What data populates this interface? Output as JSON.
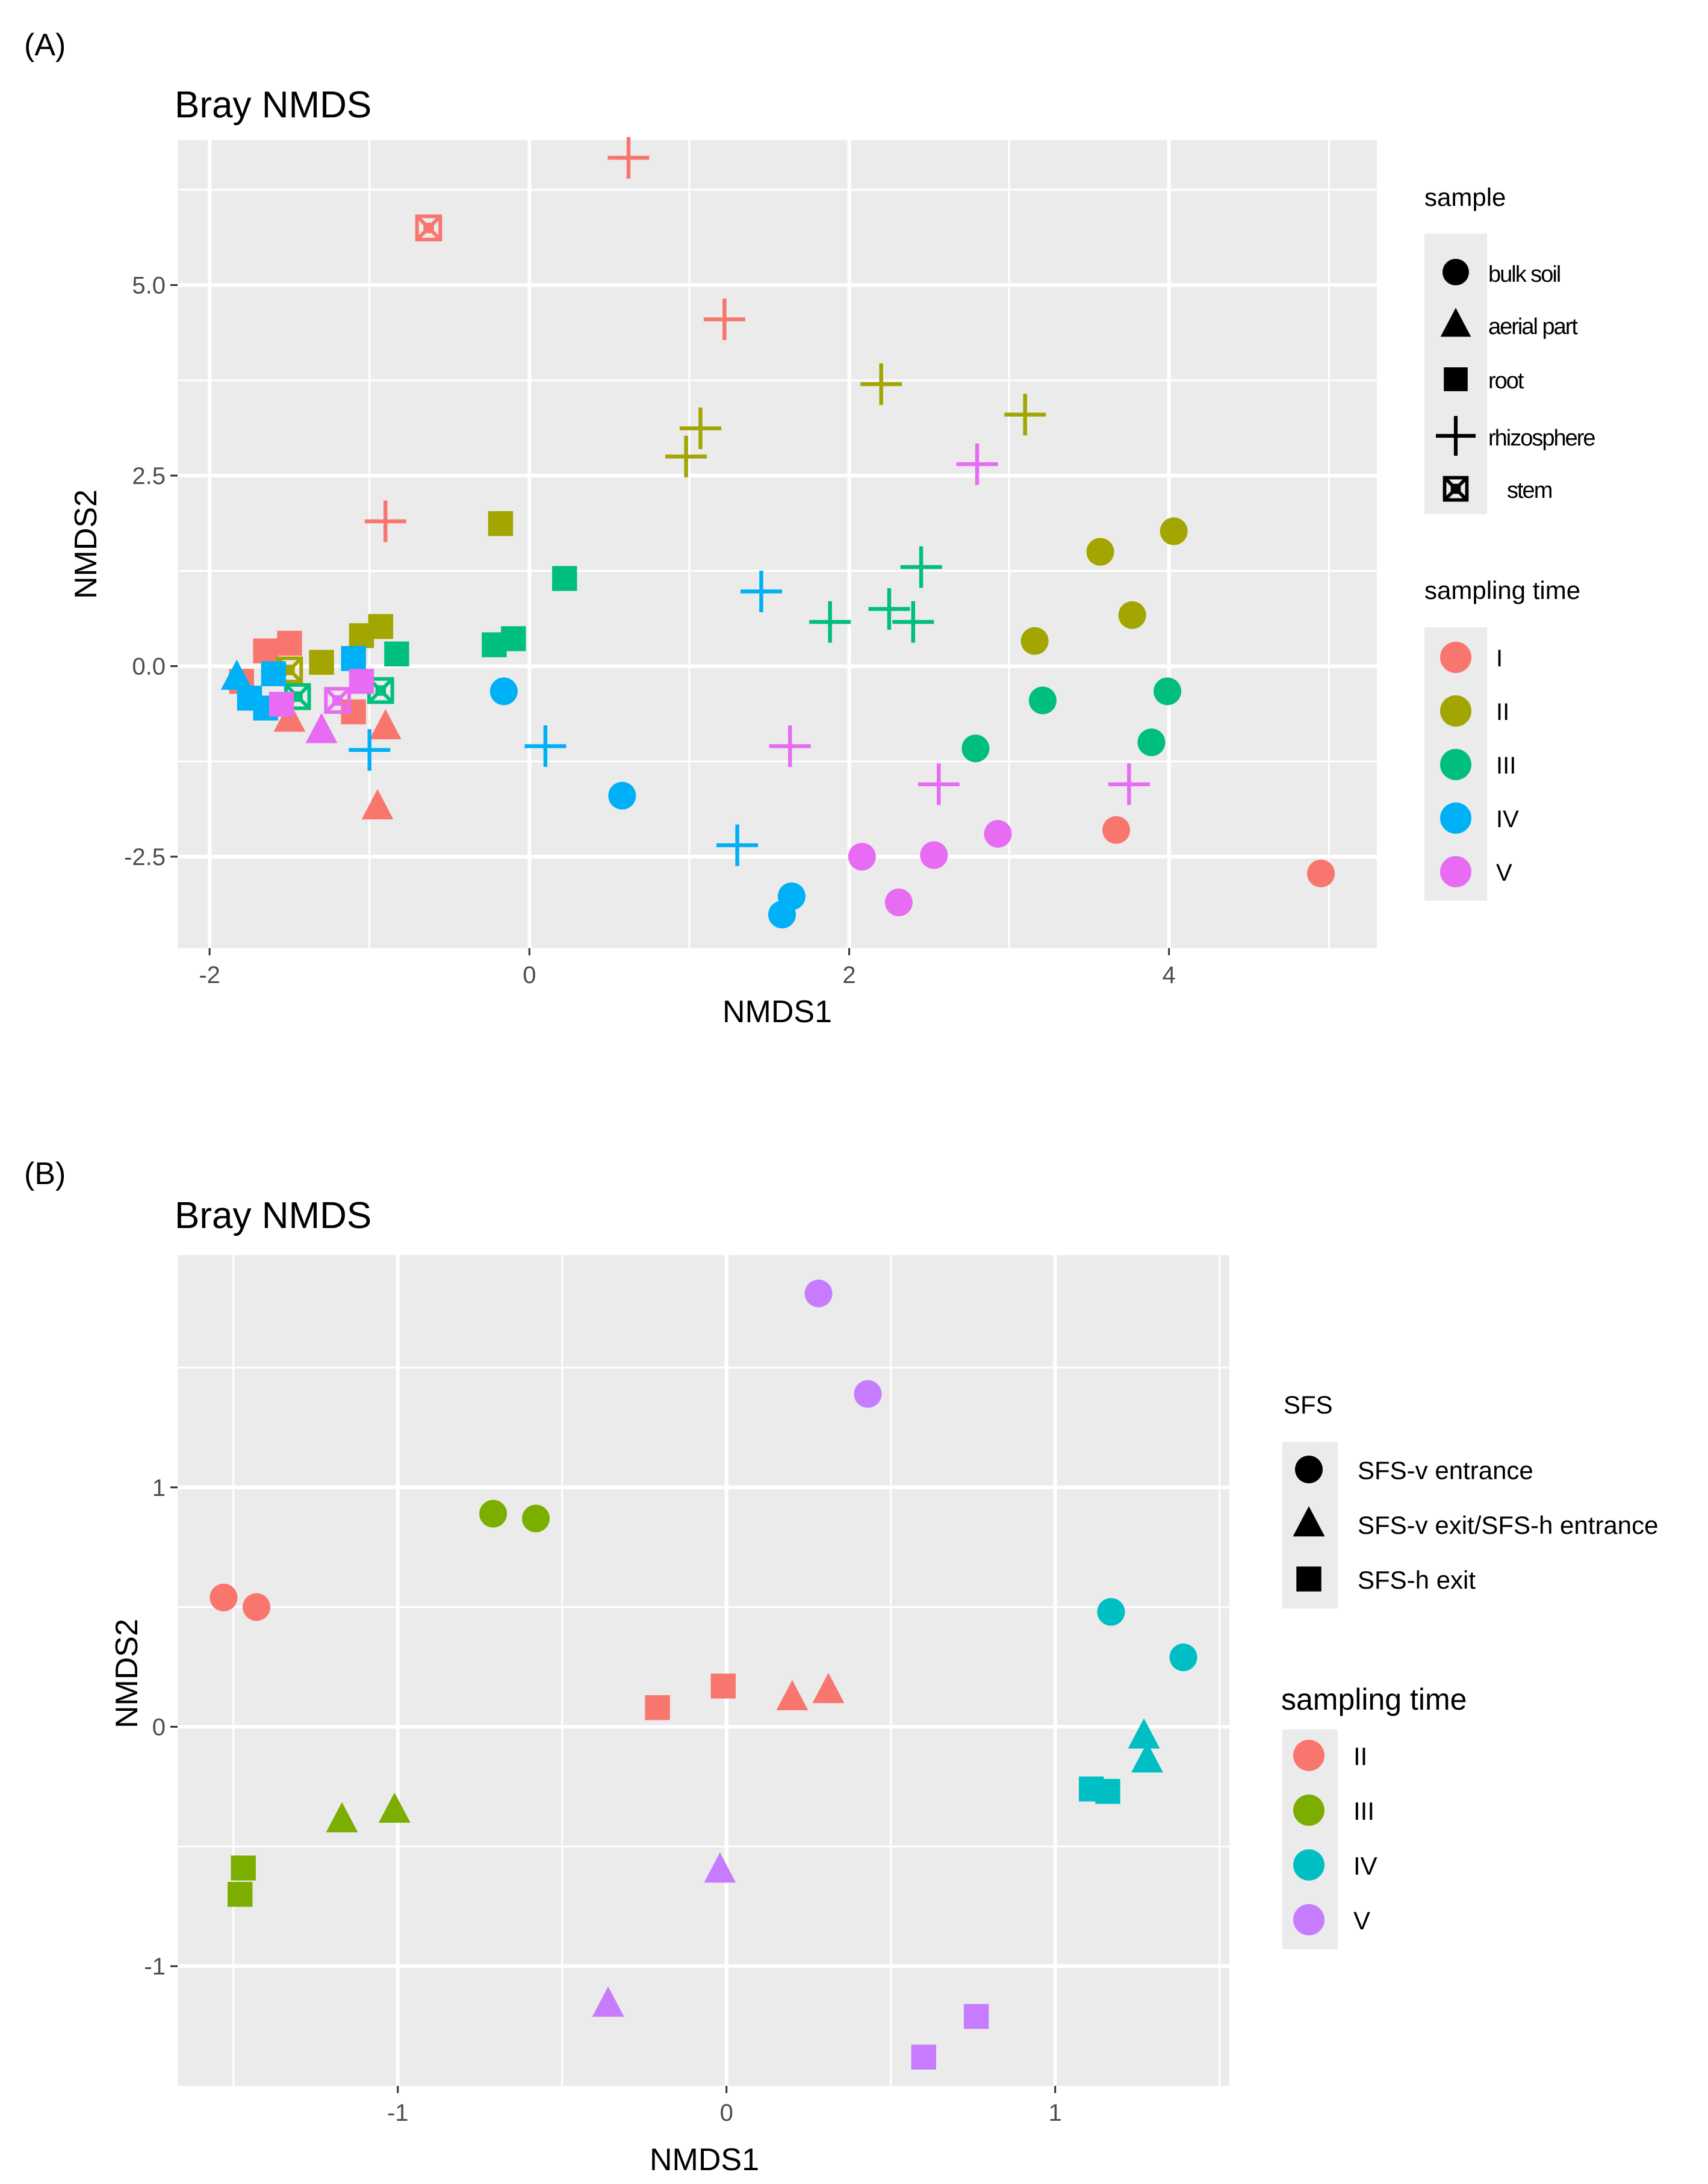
{
  "panels": [
    {
      "panel_label": "(A)",
      "legends": {
        "shape": {
          "title": "sample",
          "entries": [
            {
              "label": "bulk soil",
              "shape": "circle"
            },
            {
              "label": "aerial part",
              "shape": "triangle"
            },
            {
              "label": "root",
              "shape": "square"
            },
            {
              "label": "rhizosphere",
              "shape": "plus"
            },
            {
              "label": "stem",
              "shape": "square-x"
            }
          ]
        },
        "color": {
          "title": "sampling time",
          "entries": [
            {
              "label": "I",
              "color": "#F8766D"
            },
            {
              "label": "II",
              "color": "#A3A500"
            },
            {
              "label": "III",
              "color": "#00BF7D"
            },
            {
              "label": "IV",
              "color": "#00B0F6"
            },
            {
              "label": "V",
              "color": "#E76BF3"
            }
          ]
        }
      }
    },
    {
      "panel_label": "(B)",
      "legends": {
        "shape": {
          "title": "SFS",
          "entries": [
            {
              "label": "SFS-v entrance",
              "shape": "circle"
            },
            {
              "label": "SFS-v exit/SFS-h entrance",
              "shape": "triangle"
            },
            {
              "label": "SFS-h exit",
              "shape": "square"
            }
          ]
        },
        "color": {
          "title": "sampling time",
          "entries": [
            {
              "label": "II",
              "color": "#F8766D"
            },
            {
              "label": "III",
              "color": "#7CAE00"
            },
            {
              "label": "IV",
              "color": "#00BFC4"
            },
            {
              "label": "V",
              "color": "#C77CFF"
            }
          ]
        }
      }
    }
  ],
  "chart_data": [
    {
      "type": "scatter",
      "title": "Bray NMDS",
      "xlabel": "NMDS1",
      "ylabel": "NMDS2",
      "xlim": [
        -2.2,
        5.3
      ],
      "ylim": [
        -3.7,
        6.9
      ],
      "xticks": [
        -2,
        0,
        2,
        4
      ],
      "xtick_labels": [
        "-2",
        "0",
        "2",
        "4"
      ],
      "yticks": [
        -2.5,
        0.0,
        2.5,
        5.0
      ],
      "ytick_labels": [
        "-2.5",
        "0.0",
        "2.5",
        "5.0"
      ],
      "grid": true,
      "points": [
        {
          "x": 0.62,
          "y": 6.67,
          "shape": "plus",
          "group": "I"
        },
        {
          "x": -0.63,
          "y": 5.75,
          "shape": "square-x",
          "group": "I"
        },
        {
          "x": 1.22,
          "y": 4.55,
          "shape": "plus",
          "group": "I"
        },
        {
          "x": -0.9,
          "y": 1.9,
          "shape": "plus",
          "group": "I"
        },
        {
          "x": 3.67,
          "y": -2.15,
          "shape": "circle",
          "group": "I"
        },
        {
          "x": 4.95,
          "y": -2.72,
          "shape": "circle",
          "group": "I"
        },
        {
          "x": -0.95,
          "y": -1.85,
          "shape": "triangle",
          "group": "I"
        },
        {
          "x": -1.5,
          "y": 0.3,
          "shape": "square",
          "group": "I"
        },
        {
          "x": -1.65,
          "y": 0.2,
          "shape": "square",
          "group": "I"
        },
        {
          "x": -1.8,
          "y": -0.2,
          "shape": "square",
          "group": "I"
        },
        {
          "x": -1.5,
          "y": -0.7,
          "shape": "triangle",
          "group": "I"
        },
        {
          "x": -0.9,
          "y": -0.8,
          "shape": "triangle",
          "group": "I"
        },
        {
          "x": -1.1,
          "y": -0.6,
          "shape": "square",
          "group": "I"
        },
        {
          "x": 2.2,
          "y": 3.7,
          "shape": "plus",
          "group": "II"
        },
        {
          "x": 3.1,
          "y": 3.3,
          "shape": "plus",
          "group": "II"
        },
        {
          "x": 1.07,
          "y": 3.12,
          "shape": "plus",
          "group": "II"
        },
        {
          "x": 0.98,
          "y": 2.75,
          "shape": "plus",
          "group": "II"
        },
        {
          "x": -0.18,
          "y": 1.87,
          "shape": "square",
          "group": "II"
        },
        {
          "x": 4.03,
          "y": 1.77,
          "shape": "circle",
          "group": "II"
        },
        {
          "x": 3.57,
          "y": 1.5,
          "shape": "circle",
          "group": "II"
        },
        {
          "x": 3.77,
          "y": 0.67,
          "shape": "circle",
          "group": "II"
        },
        {
          "x": 3.16,
          "y": 0.33,
          "shape": "circle",
          "group": "II"
        },
        {
          "x": -0.93,
          "y": 0.52,
          "shape": "square",
          "group": "II"
        },
        {
          "x": -1.3,
          "y": 0.05,
          "shape": "square",
          "group": "II"
        },
        {
          "x": -1.05,
          "y": 0.4,
          "shape": "square",
          "group": "II"
        },
        {
          "x": -1.5,
          "y": -0.05,
          "shape": "square-x",
          "group": "II"
        },
        {
          "x": 0.22,
          "y": 1.15,
          "shape": "square",
          "group": "III"
        },
        {
          "x": 2.45,
          "y": 1.3,
          "shape": "plus",
          "group": "III"
        },
        {
          "x": 2.25,
          "y": 0.75,
          "shape": "plus",
          "group": "III"
        },
        {
          "x": 1.88,
          "y": 0.58,
          "shape": "plus",
          "group": "III"
        },
        {
          "x": 2.4,
          "y": 0.58,
          "shape": "plus",
          "group": "III"
        },
        {
          "x": -0.1,
          "y": 0.36,
          "shape": "square",
          "group": "III"
        },
        {
          "x": -0.22,
          "y": 0.28,
          "shape": "square",
          "group": "III"
        },
        {
          "x": -0.83,
          "y": 0.16,
          "shape": "square",
          "group": "III"
        },
        {
          "x": 3.99,
          "y": -0.33,
          "shape": "circle",
          "group": "III"
        },
        {
          "x": 3.21,
          "y": -0.45,
          "shape": "circle",
          "group": "III"
        },
        {
          "x": 2.79,
          "y": -1.08,
          "shape": "circle",
          "group": "III"
        },
        {
          "x": 3.89,
          "y": -1.0,
          "shape": "circle",
          "group": "III"
        },
        {
          "x": -0.93,
          "y": -0.32,
          "shape": "square-x",
          "group": "III"
        },
        {
          "x": -1.45,
          "y": -0.4,
          "shape": "square-x",
          "group": "III"
        },
        {
          "x": 1.45,
          "y": 0.98,
          "shape": "plus",
          "group": "IV"
        },
        {
          "x": -0.16,
          "y": -0.33,
          "shape": "circle",
          "group": "IV"
        },
        {
          "x": 0.1,
          "y": -1.05,
          "shape": "plus",
          "group": "IV"
        },
        {
          "x": -1.0,
          "y": -1.1,
          "shape": "plus",
          "group": "IV"
        },
        {
          "x": 0.58,
          "y": -1.7,
          "shape": "circle",
          "group": "IV"
        },
        {
          "x": 1.3,
          "y": -2.35,
          "shape": "plus",
          "group": "IV"
        },
        {
          "x": 1.64,
          "y": -3.02,
          "shape": "circle",
          "group": "IV"
        },
        {
          "x": 1.58,
          "y": -3.26,
          "shape": "circle",
          "group": "IV"
        },
        {
          "x": -1.83,
          "y": -0.15,
          "shape": "triangle",
          "group": "IV"
        },
        {
          "x": -1.75,
          "y": -0.42,
          "shape": "square",
          "group": "IV"
        },
        {
          "x": -1.6,
          "y": -0.1,
          "shape": "square",
          "group": "IV"
        },
        {
          "x": -1.1,
          "y": 0.1,
          "shape": "square",
          "group": "IV"
        },
        {
          "x": -1.65,
          "y": -0.55,
          "shape": "square",
          "group": "IV"
        },
        {
          "x": 2.8,
          "y": 2.65,
          "shape": "plus",
          "group": "V"
        },
        {
          "x": 1.63,
          "y": -1.05,
          "shape": "plus",
          "group": "V"
        },
        {
          "x": 2.56,
          "y": -1.55,
          "shape": "plus",
          "group": "V"
        },
        {
          "x": 3.75,
          "y": -1.55,
          "shape": "plus",
          "group": "V"
        },
        {
          "x": 2.93,
          "y": -2.2,
          "shape": "circle",
          "group": "V"
        },
        {
          "x": 2.08,
          "y": -2.5,
          "shape": "circle",
          "group": "V"
        },
        {
          "x": 2.53,
          "y": -2.48,
          "shape": "circle",
          "group": "V"
        },
        {
          "x": 2.31,
          "y": -3.1,
          "shape": "circle",
          "group": "V"
        },
        {
          "x": -1.3,
          "y": -0.85,
          "shape": "triangle",
          "group": "V"
        },
        {
          "x": -1.05,
          "y": -0.2,
          "shape": "square",
          "group": "V"
        },
        {
          "x": -1.2,
          "y": -0.45,
          "shape": "square-x",
          "group": "V"
        },
        {
          "x": -1.55,
          "y": -0.5,
          "shape": "square",
          "group": "V"
        }
      ]
    },
    {
      "type": "scatter",
      "title": "Bray NMDS",
      "xlabel": "NMDS1",
      "ylabel": "NMDS2",
      "xlim": [
        -1.67,
        1.53
      ],
      "ylim": [
        -1.5,
        1.97
      ],
      "xticks": [
        -1,
        0,
        1
      ],
      "xtick_labels": [
        "-1",
        "0",
        "1"
      ],
      "yticks": [
        -1,
        0,
        1
      ],
      "ytick_labels": [
        "-1",
        "0",
        "1"
      ],
      "grid": true,
      "points": [
        {
          "x": -1.53,
          "y": 0.54,
          "shape": "circle",
          "group": "II"
        },
        {
          "x": -1.43,
          "y": 0.5,
          "shape": "circle",
          "group": "II"
        },
        {
          "x": -0.21,
          "y": 0.08,
          "shape": "square",
          "group": "II"
        },
        {
          "x": -0.01,
          "y": 0.17,
          "shape": "square",
          "group": "II"
        },
        {
          "x": 0.2,
          "y": 0.12,
          "shape": "triangle",
          "group": "II"
        },
        {
          "x": 0.31,
          "y": 0.15,
          "shape": "triangle",
          "group": "II"
        },
        {
          "x": -0.71,
          "y": 0.89,
          "shape": "circle",
          "group": "III"
        },
        {
          "x": -0.58,
          "y": 0.87,
          "shape": "circle",
          "group": "III"
        },
        {
          "x": -1.17,
          "y": -0.39,
          "shape": "triangle",
          "group": "III"
        },
        {
          "x": -1.01,
          "y": -0.35,
          "shape": "triangle",
          "group": "III"
        },
        {
          "x": -1.47,
          "y": -0.59,
          "shape": "square",
          "group": "III"
        },
        {
          "x": -1.48,
          "y": -0.7,
          "shape": "square",
          "group": "III"
        },
        {
          "x": 1.17,
          "y": 0.48,
          "shape": "circle",
          "group": "IV"
        },
        {
          "x": 1.39,
          "y": 0.29,
          "shape": "circle",
          "group": "IV"
        },
        {
          "x": 1.27,
          "y": -0.04,
          "shape": "triangle",
          "group": "IV"
        },
        {
          "x": 1.28,
          "y": -0.14,
          "shape": "triangle",
          "group": "IV"
        },
        {
          "x": 1.11,
          "y": -0.26,
          "shape": "square",
          "group": "IV"
        },
        {
          "x": 1.16,
          "y": -0.27,
          "shape": "square",
          "group": "IV"
        },
        {
          "x": 0.28,
          "y": 1.81,
          "shape": "circle",
          "group": "V"
        },
        {
          "x": 0.43,
          "y": 1.39,
          "shape": "circle",
          "group": "V"
        },
        {
          "x": -0.02,
          "y": -0.6,
          "shape": "triangle",
          "group": "V"
        },
        {
          "x": -0.36,
          "y": -1.16,
          "shape": "triangle",
          "group": "V"
        },
        {
          "x": 0.76,
          "y": -1.21,
          "shape": "square",
          "group": "V"
        },
        {
          "x": 0.6,
          "y": -1.38,
          "shape": "square",
          "group": "V"
        }
      ]
    }
  ]
}
